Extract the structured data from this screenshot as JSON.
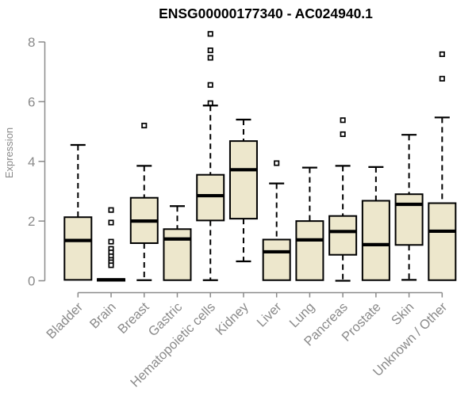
{
  "chart_data": {
    "type": "boxplot",
    "title": "ENSG00000177340 - AC024940.1",
    "ylabel": "Expression",
    "xlabel": "",
    "ylim": [
      0,
      8
    ],
    "yticks": [
      0,
      2,
      4,
      6,
      8
    ],
    "grid": false,
    "legend": "none",
    "categories": [
      "Bladder",
      "Brain",
      "Breast",
      "Gastric",
      "Hematopoietic cells",
      "Kidney",
      "Liver",
      "Lung",
      "Pancreas",
      "Prostate",
      "Skin",
      "Unknown / Other"
    ],
    "series": [
      {
        "name": "Bladder",
        "low": 0.03,
        "q1": 0.03,
        "median": 1.35,
        "q3": 2.13,
        "high": 4.55,
        "outliers": []
      },
      {
        "name": "Brain",
        "low": 0.0,
        "q1": 0.0,
        "median": 0.03,
        "q3": 0.06,
        "high": 0.06,
        "outliers": [
          2.37,
          1.95,
          1.31,
          1.07,
          0.95,
          0.82,
          0.7,
          0.62,
          0.52
        ]
      },
      {
        "name": "Breast",
        "low": 0.02,
        "q1": 1.26,
        "median": 2.0,
        "q3": 2.78,
        "high": 3.85,
        "outliers": [
          5.2
        ]
      },
      {
        "name": "Gastric",
        "low": 0.02,
        "q1": 0.02,
        "median": 1.4,
        "q3": 1.73,
        "high": 2.5,
        "outliers": []
      },
      {
        "name": "Hematopoietic cells",
        "low": 0.02,
        "q1": 2.02,
        "median": 2.85,
        "q3": 3.55,
        "high": 5.87,
        "outliers": [
          8.27,
          7.72,
          7.47,
          6.56,
          5.95
        ]
      },
      {
        "name": "Kidney",
        "low": 0.65,
        "q1": 2.08,
        "median": 3.72,
        "q3": 4.68,
        "high": 5.4,
        "outliers": []
      },
      {
        "name": "Liver",
        "low": 0.02,
        "q1": 0.02,
        "median": 0.97,
        "q3": 1.38,
        "high": 3.26,
        "outliers": [
          3.94
        ]
      },
      {
        "name": "Lung",
        "low": 0.02,
        "q1": 0.02,
        "median": 1.37,
        "q3": 2.0,
        "high": 3.79,
        "outliers": []
      },
      {
        "name": "Pancreas",
        "low": 0.0,
        "q1": 0.87,
        "median": 1.65,
        "q3": 2.17,
        "high": 3.85,
        "outliers": [
          5.38,
          4.91
        ]
      },
      {
        "name": "Prostate",
        "low": 0.02,
        "q1": 0.02,
        "median": 1.21,
        "q3": 2.68,
        "high": 3.81,
        "outliers": []
      },
      {
        "name": "Skin",
        "low": 0.03,
        "q1": 1.2,
        "median": 2.56,
        "q3": 2.9,
        "high": 4.89,
        "outliers": []
      },
      {
        "name": "Unknown / Other",
        "low": 0.02,
        "q1": 0.02,
        "median": 1.66,
        "q3": 2.6,
        "high": 5.47,
        "outliers": [
          7.59,
          6.77
        ]
      }
    ],
    "colors": {
      "box_fill": "#EDE7CC",
      "box_border": "#000000",
      "median": "#000000",
      "whisker": "#000000",
      "outlier_fill": "#FFFFFF",
      "axis": "#8A8A8A",
      "tick_label": "#8A8A8A",
      "title": "#000000",
      "background": "#FFFFFF"
    }
  }
}
